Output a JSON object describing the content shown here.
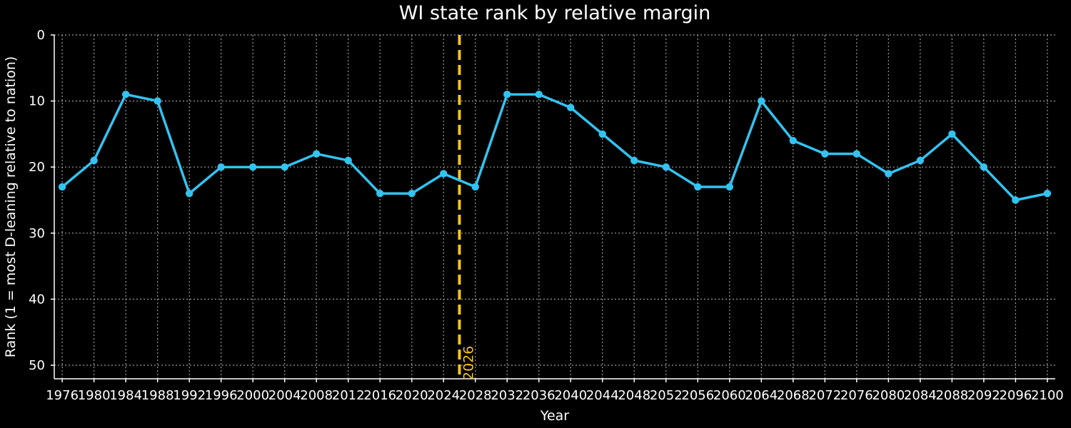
{
  "chart_data": {
    "type": "line",
    "title": "WI state rank by relative margin",
    "xlabel": "Year",
    "ylabel": "Rank (1 = most D-leaning relative to nation)",
    "xlim": [
      1975,
      2101
    ],
    "ylim": [
      52,
      0
    ],
    "y_inverted": true,
    "grid": true,
    "x": [
      1976,
      1980,
      1984,
      1988,
      1992,
      1996,
      2000,
      2004,
      2008,
      2012,
      2016,
      2020,
      2024,
      2028,
      2032,
      2036,
      2040,
      2044,
      2048,
      2052,
      2056,
      2060,
      2064,
      2068,
      2072,
      2076,
      2080,
      2084,
      2088,
      2092,
      2096,
      2100
    ],
    "x_tick_labels": [
      "1976",
      "1980",
      "1984",
      "1988",
      "1992",
      "1996",
      "2000",
      "2004",
      "2008",
      "2012",
      "2016",
      "2020",
      "2024",
      "2028",
      "2032",
      "2036",
      "2040",
      "2044",
      "2048",
      "2052",
      "2056",
      "2060",
      "2064",
      "2068",
      "2072",
      "2076",
      "2080",
      "2084",
      "2088",
      "2092",
      "2096",
      "2100"
    ],
    "y_ticks": [
      0,
      10,
      20,
      30,
      40,
      50
    ],
    "y_tick_labels": [
      "0",
      "10",
      "20",
      "30",
      "40",
      "50"
    ],
    "series": [
      {
        "values": [
          23,
          19,
          9,
          10,
          24,
          20,
          20,
          20,
          18,
          19,
          24,
          24,
          21,
          23,
          9,
          9,
          11,
          15,
          19,
          20,
          23,
          23,
          10,
          16,
          18,
          18,
          21,
          19,
          15,
          20,
          25,
          24
        ],
        "color": "#33c3f0"
      }
    ],
    "vertical_marker": {
      "x": 2026,
      "label": "2026",
      "color": "#f5c518"
    }
  }
}
